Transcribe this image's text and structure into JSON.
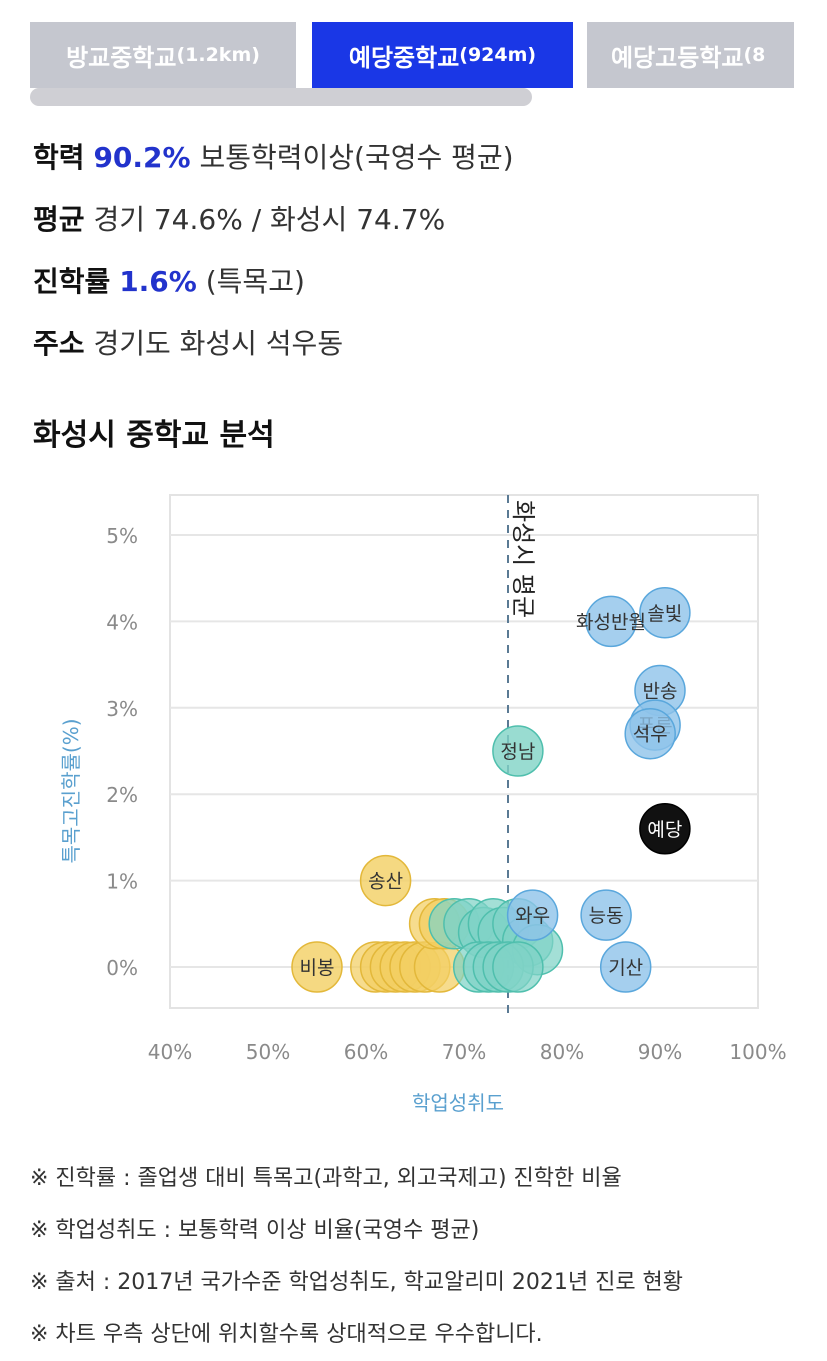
{
  "tabs": [
    {
      "name": "방교중학교",
      "dist": "(1.2km)"
    },
    {
      "name": "예당중학교",
      "dist": "(924m)"
    },
    {
      "name": "예당고등학교",
      "dist": "(8"
    }
  ],
  "info": {
    "achievement": {
      "label": "학력",
      "value": "90.2%",
      "desc": "보통학력이상(국영수 평균)"
    },
    "average": {
      "label": "평균",
      "text": "경기 74.6% / 화성시 74.7%"
    },
    "advancement": {
      "label": "진학률",
      "value": "1.6%",
      "desc": "(특목고)"
    },
    "address": {
      "label": "주소",
      "text": "경기도 화성시 석우동"
    }
  },
  "section_title": "화성시 중학교 분석",
  "colors": {
    "blue": "#8fc3ea",
    "teal": "#7fd3c6",
    "yellow": "#f2cf63",
    "black": "#111111",
    "accent": "#1a37e6"
  },
  "chart_data": {
    "type": "scatter",
    "xlabel": "학업성취도",
    "ylabel": "특목고진학률(%)",
    "x_ticks": [
      "40%",
      "50%",
      "60%",
      "70%",
      "80%",
      "90%",
      "100%"
    ],
    "y_ticks": [
      "0%",
      "1%",
      "2%",
      "3%",
      "4%",
      "5%"
    ],
    "xlim": [
      40,
      100
    ],
    "ylim": [
      0,
      5
    ],
    "reference_line": {
      "x": 75,
      "label": "화성시 평균"
    },
    "grid": true,
    "points": [
      {
        "label": "솔빛",
        "x": 90.5,
        "y": 4.1,
        "group": "blue"
      },
      {
        "label": "화성반월",
        "x": 85,
        "y": 4.0,
        "group": "blue"
      },
      {
        "label": "반송",
        "x": 90,
        "y": 3.2,
        "group": "blue"
      },
      {
        "label": "푸른",
        "x": 89.5,
        "y": 2.8,
        "group": "blue"
      },
      {
        "label": "석우",
        "x": 89,
        "y": 2.7,
        "group": "blue"
      },
      {
        "label": "정남",
        "x": 75.5,
        "y": 2.5,
        "group": "teal"
      },
      {
        "label": "예당",
        "x": 90.5,
        "y": 1.6,
        "group": "black"
      },
      {
        "label": "송산",
        "x": 62,
        "y": 1.0,
        "group": "yellow"
      },
      {
        "label": "능동",
        "x": 84.5,
        "y": 0.6,
        "group": "blue"
      },
      {
        "label": "와우",
        "x": 77,
        "y": 0.6,
        "group": "blue"
      },
      {
        "label": "기산",
        "x": 86.5,
        "y": 0.0,
        "group": "blue"
      },
      {
        "label": "비봉",
        "x": 55,
        "y": 0.0,
        "group": "yellow"
      }
    ]
  },
  "notes": [
    "※ 진학률 : 졸업생 대비 특목고(과학고, 외고국제고) 진학한 비율",
    "※ 학업성취도 : 보통학력 이상 비율(국영수 평균)",
    "※ 출처 : 2017년 국가수준 학업성취도, 학교알리미 2021년 진로 현황",
    "※ 차트 우측 상단에 위치할수록 상대적으로 우수합니다."
  ]
}
